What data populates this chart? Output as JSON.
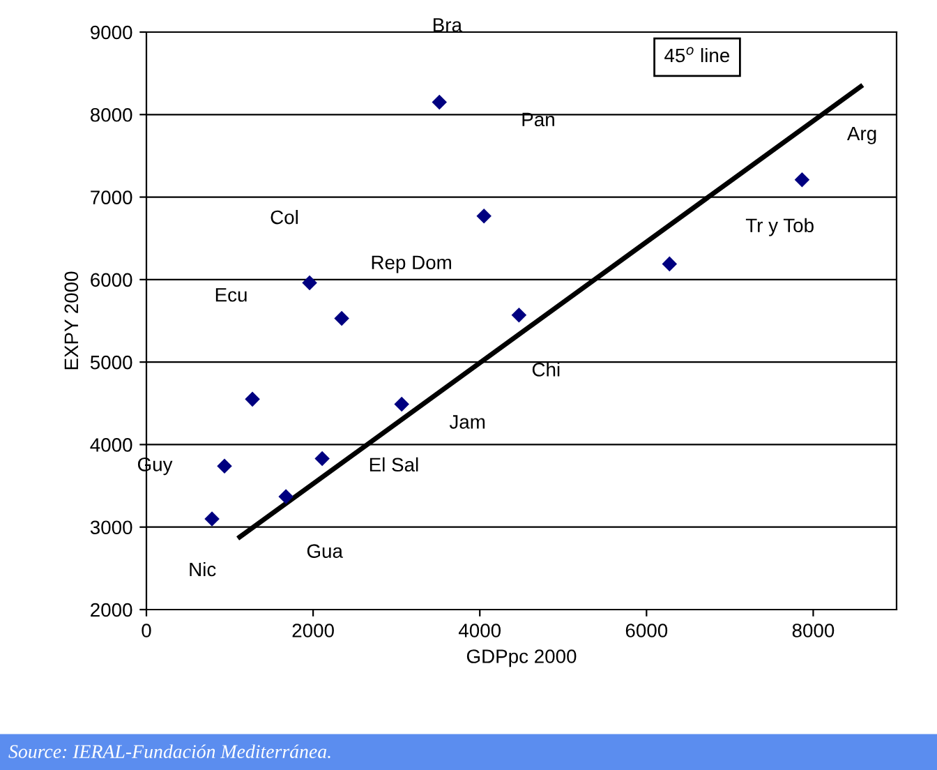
{
  "chart_data": {
    "type": "scatter",
    "xlabel": "GDPpc 2000",
    "ylabel": "EXPY 2000",
    "xlim": [
      0,
      9000
    ],
    "ylim": [
      2000,
      9000
    ],
    "xticks": [
      0,
      2000,
      4000,
      6000,
      8000
    ],
    "yticks": [
      2000,
      3000,
      4000,
      5000,
      6000,
      7000,
      8000,
      9000
    ],
    "grid": "y",
    "legend": false,
    "marker": "diamond",
    "series": [
      {
        "color": "#000080",
        "x": [
          787,
          937,
          1272,
          1674,
          1958,
          2109,
          2343,
          3063,
          3515,
          4050,
          4470,
          6276,
          7866
        ],
        "values": [
          3100,
          3740,
          4550,
          3370,
          5960,
          3830,
          5530,
          4490,
          8150,
          6770,
          5570,
          6190,
          7210
        ]
      },
      {
        "type": "line",
        "marker": "none",
        "color": "#000000",
        "x": [
          1120,
          8570
        ],
        "values": [
          2880,
          8340
        ]
      }
    ],
    "annotations": [
      "Nic",
      "Guy",
      "Ecu",
      "Gua",
      "Col",
      "El Sal",
      "Rep Dom",
      "Jam",
      "Bra",
      "Pan",
      "Chi",
      "Tr y Tob",
      "Arg",
      "45$^{o}$ line",
      "Source: IERAL-Fundación Mediterránea."
    ]
  }
}
